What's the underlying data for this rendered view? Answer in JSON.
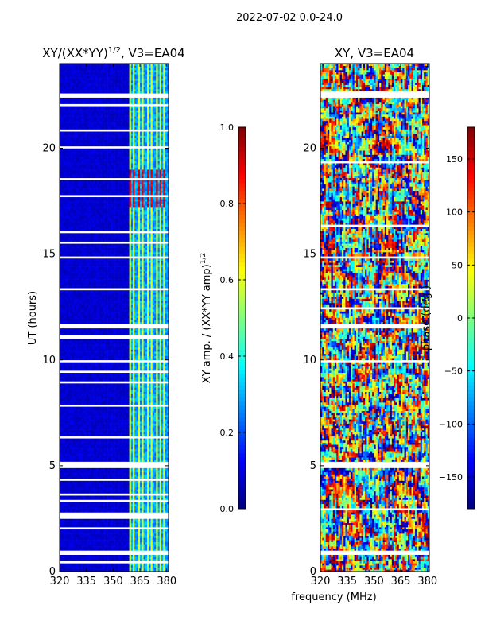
{
  "page_title": "2022-07-02 0.0-24.0",
  "xlabel_shared": "frequency (MHz)",
  "chart_data": [
    {
      "type": "heatmap",
      "title_prefix": "XY/(XX*YY)",
      "title_sup": "1/2",
      "title_suffix": ", V3=EA04",
      "ylabel": "UT (hours)",
      "x_ticks": [
        320,
        335,
        350,
        365,
        380
      ],
      "x_tick_labels": [
        "320",
        "335",
        "350",
        "365",
        "380"
      ],
      "xlim": [
        320,
        381
      ],
      "y_ticks": [
        0,
        5,
        10,
        15,
        20
      ],
      "y_tick_labels": [
        "0",
        "5",
        "10",
        "15",
        "20"
      ],
      "ylim": [
        0,
        24
      ],
      "colorbar": {
        "label_prefix": "XY amp. / (XX*YY amp)",
        "label_sup": "1/2",
        "range": [
          0.0,
          1.0
        ],
        "ticks": [
          0.0,
          0.2,
          0.4,
          0.6,
          0.8,
          1.0
        ],
        "tick_labels": [
          "0.0",
          "0.2",
          "0.4",
          "0.6",
          "0.8",
          "1.0"
        ],
        "colormap": "jet"
      },
      "flagged_ut_ranges_hours": [
        [
          0.4,
          0.5
        ],
        [
          0.8,
          1.0
        ],
        [
          2.0,
          2.1
        ],
        [
          2.5,
          2.8
        ],
        [
          3.3,
          3.4
        ],
        [
          3.6,
          3.7
        ],
        [
          4.3,
          4.4
        ],
        [
          4.9,
          5.2
        ],
        [
          6.3,
          6.4
        ],
        [
          7.8,
          7.9
        ],
        [
          8.9,
          9.0
        ],
        [
          9.4,
          9.5
        ],
        [
          9.9,
          10.0
        ],
        [
          11.0,
          11.2
        ],
        [
          11.5,
          11.7
        ],
        [
          13.3,
          13.4
        ],
        [
          14.8,
          14.9
        ],
        [
          15.5,
          15.6
        ],
        [
          16.0,
          16.1
        ],
        [
          17.7,
          17.8
        ],
        [
          18.5,
          18.6
        ],
        [
          20.0,
          20.1
        ],
        [
          20.8,
          20.9
        ],
        [
          22.0,
          22.1
        ],
        [
          22.4,
          22.6
        ]
      ],
      "cell_values": {
        "background": 0.05,
        "band_start_mhz": 359,
        "band_peak": 0.5,
        "bright_block_ut": [
          17.2,
          19.0
        ],
        "bright_block_value": 0.85
      }
    },
    {
      "type": "heatmap",
      "title": "XY, V3=EA04",
      "x_ticks": [
        320,
        335,
        350,
        365,
        380
      ],
      "x_tick_labels": [
        "320",
        "335",
        "350",
        "365",
        "380"
      ],
      "xlim": [
        320,
        381
      ],
      "y_ticks": [
        0,
        5,
        10,
        15,
        20
      ],
      "y_tick_labels": [
        "0",
        "5",
        "10",
        "15",
        "20"
      ],
      "ylim": [
        0,
        24
      ],
      "colorbar": {
        "label": "phase (deg.)",
        "range": [
          -180,
          180
        ],
        "ticks": [
          -150,
          -100,
          -50,
          0,
          50,
          100,
          150
        ],
        "tick_labels": [
          "−150",
          "−100",
          "−50",
          "0",
          "50",
          "100",
          "150"
        ],
        "colormap": "jet"
      },
      "flagged_ut_ranges_hours": [
        [
          0.8,
          1.0
        ],
        [
          2.9,
          3.0
        ],
        [
          4.9,
          5.2
        ],
        [
          9.9,
          10.0
        ],
        [
          11.5,
          11.7
        ],
        [
          12.4,
          12.5
        ],
        [
          13.3,
          13.4
        ],
        [
          14.8,
          14.9
        ],
        [
          16.3,
          16.4
        ],
        [
          19.3,
          19.4
        ],
        [
          22.4,
          22.7
        ]
      ]
    }
  ]
}
